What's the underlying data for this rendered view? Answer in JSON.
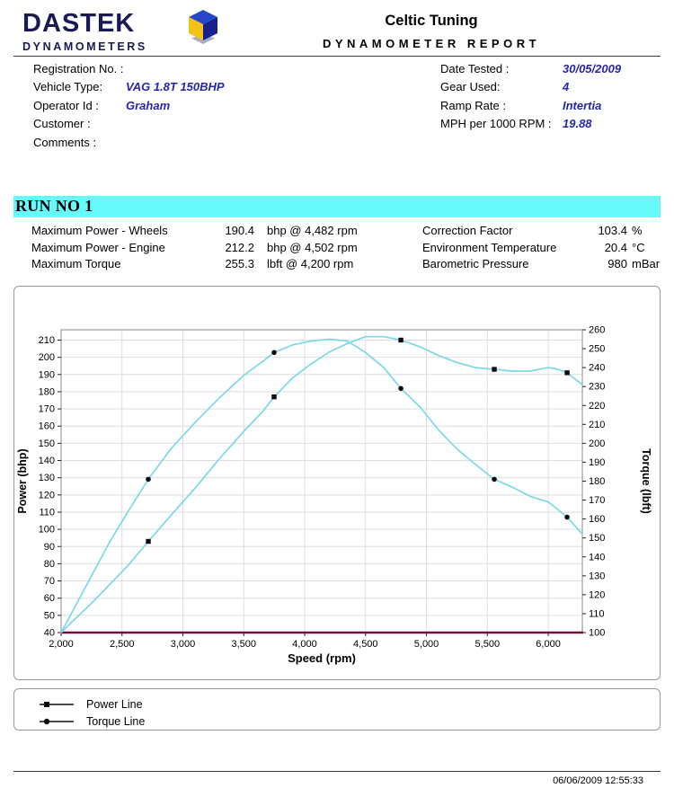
{
  "header": {
    "brand": "DASTEK",
    "brand_sub": "DYNAMOMETERS",
    "title": "Celtic Tuning",
    "subtitle": "DYNAMOMETER REPORT"
  },
  "info": {
    "left": [
      {
        "label": "Registration No. :",
        "value": ""
      },
      {
        "label": "Vehicle Type:",
        "value": "VAG 1.8T 150BHP"
      },
      {
        "label": "Operator Id :",
        "value": "Graham"
      },
      {
        "label": "Customer :",
        "value": ""
      },
      {
        "label": "Comments :",
        "value": ""
      }
    ],
    "right": [
      {
        "label": "Date Tested :",
        "value": "30/05/2009"
      },
      {
        "label": "Gear Used:",
        "value": "4"
      },
      {
        "label": "Ramp Rate :",
        "value": "Intertia"
      },
      {
        "label": "MPH per 1000 RPM :",
        "value": "19.88"
      }
    ]
  },
  "run_banner": "RUN NO 1",
  "stats": {
    "left": [
      {
        "label": "Maximum Power - Wheels",
        "value": "190.4",
        "unit": "bhp @ 4,482 rpm"
      },
      {
        "label": "Maximum Power - Engine",
        "value": "212.2",
        "unit": "bhp @ 4,502 rpm"
      },
      {
        "label": "Maximum Torque",
        "value": "255.3",
        "unit": "lbft @ 4,200 rpm"
      }
    ],
    "right": [
      {
        "label": "Correction Factor",
        "value": "103.4",
        "unit": "%"
      },
      {
        "label": "Environment Temperature",
        "value": "20.4",
        "unit": "°C"
      },
      {
        "label": "Barometric Pressure",
        "value": "980",
        "unit": "mBar"
      }
    ]
  },
  "chart_data": {
    "type": "line",
    "title": "",
    "xlabel": "Speed (rpm)",
    "x_range": [
      2000,
      6280
    ],
    "x_ticks": [
      2000,
      2500,
      3000,
      3500,
      4000,
      4500,
      5000,
      5500,
      6000
    ],
    "x_tick_labels": [
      "2,000",
      "2,500",
      "3,000",
      "3,500",
      "4,000",
      "4,500",
      "5,000",
      "5,500",
      "6,000"
    ],
    "grid": true,
    "legend_position": "below",
    "axes": {
      "left": {
        "label": "Power (bhp)",
        "range": [
          40,
          216
        ],
        "ticks": [
          210,
          200,
          190,
          180,
          170,
          160,
          150,
          140,
          130,
          120,
          110,
          100,
          90,
          80,
          70,
          60,
          50,
          40
        ]
      },
      "right": {
        "label": "Torque (lbft)",
        "range": [
          100,
          260
        ],
        "ticks": [
          260,
          250,
          240,
          230,
          220,
          210,
          200,
          190,
          180,
          170,
          160,
          150,
          140,
          130,
          120,
          110,
          100
        ]
      }
    },
    "series": [
      {
        "name": "Power Line",
        "axis": "left",
        "marker": "square",
        "color": "#7bd9e7",
        "points": [
          [
            2000,
            40
          ],
          [
            2100,
            47
          ],
          [
            2250,
            57
          ],
          [
            2400,
            68
          ],
          [
            2550,
            79
          ],
          [
            2716,
            93
          ],
          [
            2900,
            108
          ],
          [
            3100,
            124
          ],
          [
            3300,
            141
          ],
          [
            3500,
            157
          ],
          [
            3650,
            168
          ],
          [
            3749,
            177
          ],
          [
            3900,
            188
          ],
          [
            4050,
            196
          ],
          [
            4200,
            203
          ],
          [
            4350,
            208
          ],
          [
            4500,
            212
          ],
          [
            4650,
            212
          ],
          [
            4790,
            210
          ],
          [
            4950,
            206
          ],
          [
            5100,
            201
          ],
          [
            5250,
            197
          ],
          [
            5400,
            194
          ],
          [
            5557,
            193
          ],
          [
            5700,
            192
          ],
          [
            5850,
            192
          ],
          [
            6000,
            194
          ],
          [
            6080,
            193
          ],
          [
            6155,
            191
          ],
          [
            6280,
            184
          ]
        ],
        "markers": [
          [
            2716,
            93
          ],
          [
            3749,
            177
          ],
          [
            4790,
            210
          ],
          [
            5557,
            193
          ],
          [
            6155,
            191
          ]
        ]
      },
      {
        "name": "Torque Line",
        "axis": "right",
        "marker": "circle",
        "color": "#7bd9e7",
        "points": [
          [
            2000,
            100
          ],
          [
            2100,
            112
          ],
          [
            2250,
            130
          ],
          [
            2400,
            148
          ],
          [
            2550,
            164
          ],
          [
            2716,
            181
          ],
          [
            2900,
            197
          ],
          [
            3100,
            211
          ],
          [
            3300,
            224
          ],
          [
            3500,
            236
          ],
          [
            3650,
            243
          ],
          [
            3749,
            248
          ],
          [
            3900,
            252
          ],
          [
            4050,
            254
          ],
          [
            4200,
            255
          ],
          [
            4350,
            254
          ],
          [
            4500,
            248
          ],
          [
            4650,
            240
          ],
          [
            4790,
            229
          ],
          [
            4950,
            219
          ],
          [
            5100,
            207
          ],
          [
            5250,
            197
          ],
          [
            5400,
            189
          ],
          [
            5557,
            181
          ],
          [
            5700,
            177
          ],
          [
            5850,
            172
          ],
          [
            6000,
            169
          ],
          [
            6080,
            165
          ],
          [
            6155,
            161
          ],
          [
            6280,
            152
          ]
        ],
        "markers": [
          [
            2716,
            181
          ],
          [
            3749,
            248
          ],
          [
            4790,
            229
          ],
          [
            5557,
            181
          ],
          [
            6155,
            161
          ]
        ]
      }
    ]
  },
  "legend": [
    {
      "marker": "square",
      "label": "Power Line"
    },
    {
      "marker": "circle",
      "label": "Torque Line"
    }
  ],
  "footer": {
    "timestamp": "06/06/2009 12:55:33"
  },
  "colors": {
    "banner_cyan": "#66fafa",
    "curve_cyan": "#7bd9e7",
    "value_blue": "#2626a8",
    "baseline_maroon": "#6e1240"
  }
}
